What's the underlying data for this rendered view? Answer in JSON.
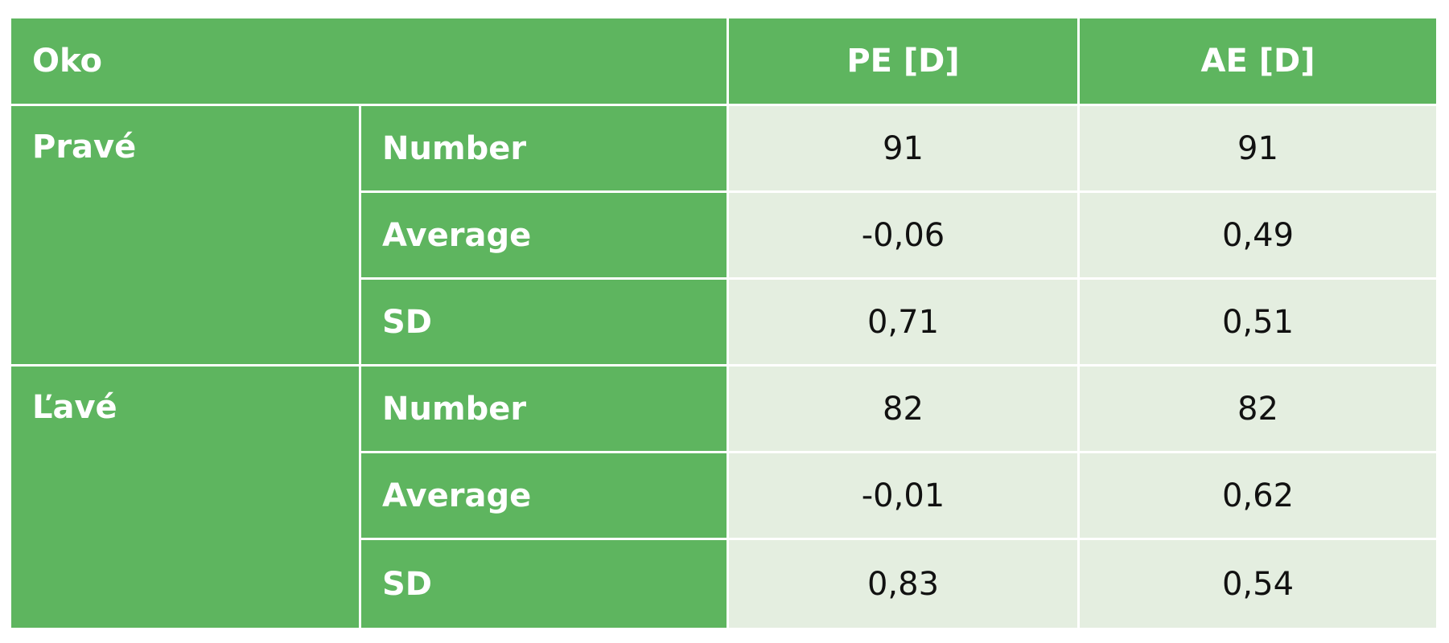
{
  "table": {
    "header": [
      "Oko",
      "PE [D]",
      "AE [D]"
    ],
    "groups": [
      {
        "label": "Pravé",
        "rows": [
          {
            "stat": "Number",
            "values": [
              "91",
              "91"
            ]
          },
          {
            "stat": "Average",
            "values": [
              "-0,06",
              "0,49"
            ]
          },
          {
            "stat": "SD",
            "values": [
              "0,71",
              "0,51"
            ]
          }
        ]
      },
      {
        "label": "Ľavé",
        "rows": [
          {
            "stat": "Number",
            "values": [
              "82",
              "82"
            ]
          },
          {
            "stat": "Average",
            "values": [
              "-0,01",
              "0,62"
            ]
          },
          {
            "stat": "SD",
            "values": [
              "0,83",
              "0,54"
            ]
          }
        ]
      }
    ]
  }
}
